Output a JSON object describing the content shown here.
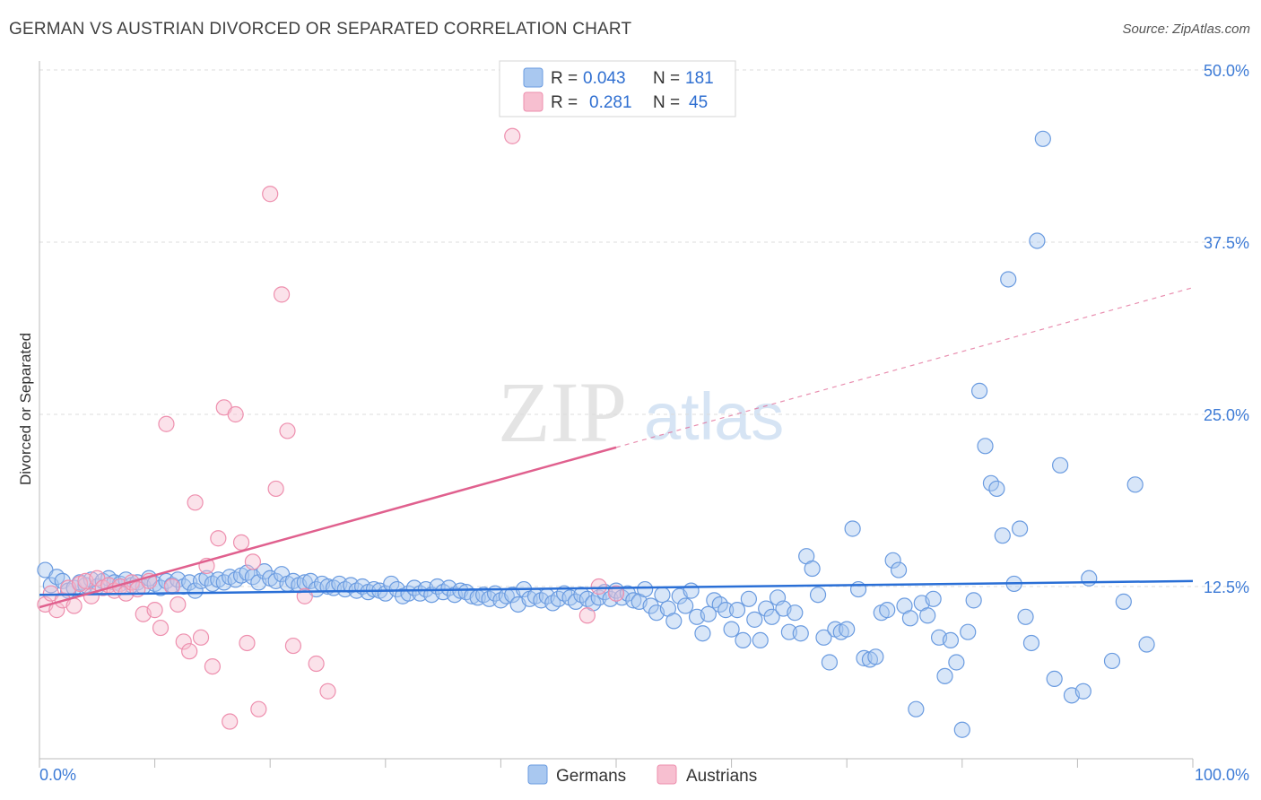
{
  "title": "GERMAN VS AUSTRIAN DIVORCED OR SEPARATED CORRELATION CHART",
  "source": "Source: ZipAtlas.com",
  "watermark": {
    "zip": "ZIP",
    "atlas": "atlas"
  },
  "legend": {
    "rows": [
      {
        "r_label": "R =",
        "r_value": "0.043",
        "n_label": "N =",
        "n_value": "181"
      },
      {
        "r_label": "R =",
        "r_value": "0.281",
        "n_label": "N =",
        "n_value": "45"
      }
    ]
  },
  "bottom_legend": [
    "Germans",
    "Austrians"
  ],
  "colors": {
    "german_fill": "#a9c8f0",
    "german_stroke": "#6a9be0",
    "german_line": "#2a6fd6",
    "austrian_fill": "#f7bfd0",
    "austrian_stroke": "#ee8fae",
    "austrian_line": "#e0608e",
    "tick_label": "#3d7bd6"
  },
  "chart_data": {
    "type": "scatter",
    "title": "GERMAN VS AUSTRIAN DIVORCED OR SEPARATED CORRELATION CHART",
    "xlabel": "",
    "ylabel": "Divorced or Separated",
    "xlim": [
      0,
      100
    ],
    "ylim": [
      0,
      50
    ],
    "x_tick_labels": [
      "0.0%",
      "100.0%"
    ],
    "y_tick_labels": [
      "12.5%",
      "25.0%",
      "37.5%",
      "50.0%"
    ],
    "y_ticks": [
      12.5,
      25.0,
      37.5,
      50.0
    ],
    "grid": true,
    "legend_position": "top-center",
    "series": [
      {
        "name": "Germans",
        "R": 0.043,
        "N": 181,
        "trend": {
          "x": [
            0,
            100
          ],
          "y": [
            11.9,
            12.9
          ]
        },
        "points": [
          [
            0.5,
            13.7
          ],
          [
            1,
            12.6
          ],
          [
            1.5,
            13.2
          ],
          [
            2,
            12.9
          ],
          [
            2.5,
            12.2
          ],
          [
            3,
            12.4
          ],
          [
            3.5,
            12.8
          ],
          [
            4,
            12.6
          ],
          [
            4.5,
            13.0
          ],
          [
            5,
            12.5
          ],
          [
            5.5,
            12.9
          ],
          [
            6,
            13.1
          ],
          [
            6.5,
            12.8
          ],
          [
            7,
            12.7
          ],
          [
            7.5,
            13.0
          ],
          [
            8,
            12.6
          ],
          [
            8.5,
            12.8
          ],
          [
            9,
            12.5
          ],
          [
            9.5,
            13.1
          ],
          [
            10,
            12.7
          ],
          [
            10.5,
            12.4
          ],
          [
            11,
            12.9
          ],
          [
            11.5,
            12.6
          ],
          [
            12,
            13.0
          ],
          [
            12.5,
            12.5
          ],
          [
            13,
            12.8
          ],
          [
            13.5,
            12.2
          ],
          [
            14,
            12.9
          ],
          [
            14.5,
            13.1
          ],
          [
            15,
            12.7
          ],
          [
            15.5,
            13.0
          ],
          [
            16,
            12.8
          ],
          [
            16.5,
            13.2
          ],
          [
            17,
            13.0
          ],
          [
            17.5,
            13.3
          ],
          [
            18,
            13.5
          ],
          [
            18.5,
            13.2
          ],
          [
            19,
            12.8
          ],
          [
            19.5,
            13.6
          ],
          [
            20,
            13.1
          ],
          [
            20.5,
            12.9
          ],
          [
            21,
            13.4
          ],
          [
            21.5,
            12.7
          ],
          [
            22,
            12.9
          ],
          [
            22.5,
            12.6
          ],
          [
            23,
            12.8
          ],
          [
            23.5,
            12.9
          ],
          [
            24,
            12.3
          ],
          [
            24.5,
            12.7
          ],
          [
            25,
            12.5
          ],
          [
            25.5,
            12.4
          ],
          [
            26,
            12.7
          ],
          [
            26.5,
            12.3
          ],
          [
            27,
            12.6
          ],
          [
            27.5,
            12.2
          ],
          [
            28,
            12.5
          ],
          [
            28.5,
            12.1
          ],
          [
            29,
            12.3
          ],
          [
            29.5,
            12.2
          ],
          [
            30,
            12.0
          ],
          [
            30.5,
            12.7
          ],
          [
            31,
            12.3
          ],
          [
            31.5,
            11.8
          ],
          [
            32,
            12.0
          ],
          [
            32.5,
            12.4
          ],
          [
            33,
            12.0
          ],
          [
            33.5,
            12.3
          ],
          [
            34,
            11.9
          ],
          [
            34.5,
            12.5
          ],
          [
            35,
            12.1
          ],
          [
            35.5,
            12.4
          ],
          [
            36,
            11.9
          ],
          [
            36.5,
            12.2
          ],
          [
            37,
            12.1
          ],
          [
            37.5,
            11.8
          ],
          [
            38,
            11.7
          ],
          [
            38.5,
            11.9
          ],
          [
            39,
            11.6
          ],
          [
            39.5,
            12.0
          ],
          [
            40,
            11.5
          ],
          [
            40.5,
            11.8
          ],
          [
            41,
            11.9
          ],
          [
            41.5,
            11.2
          ],
          [
            42,
            12.3
          ],
          [
            42.5,
            11.6
          ],
          [
            43,
            11.8
          ],
          [
            43.5,
            11.5
          ],
          [
            44,
            11.8
          ],
          [
            44.5,
            11.3
          ],
          [
            45,
            11.6
          ],
          [
            45.5,
            12.0
          ],
          [
            46,
            11.7
          ],
          [
            46.5,
            11.4
          ],
          [
            47,
            11.9
          ],
          [
            47.5,
            11.6
          ],
          [
            48,
            11.3
          ],
          [
            48.5,
            11.7
          ],
          [
            49,
            12.1
          ],
          [
            49.5,
            11.6
          ],
          [
            50,
            12.2
          ],
          [
            50.5,
            11.7
          ],
          [
            51,
            12.0
          ],
          [
            51.5,
            11.5
          ],
          [
            52,
            11.4
          ],
          [
            52.5,
            12.3
          ],
          [
            53,
            11.1
          ],
          [
            53.5,
            10.6
          ],
          [
            54,
            11.9
          ],
          [
            54.5,
            10.9
          ],
          [
            55,
            10.0
          ],
          [
            55.5,
            11.8
          ],
          [
            56,
            11.1
          ],
          [
            56.5,
            12.2
          ],
          [
            57,
            10.3
          ],
          [
            57.5,
            9.1
          ],
          [
            58,
            10.5
          ],
          [
            58.5,
            11.5
          ],
          [
            59,
            11.2
          ],
          [
            59.5,
            10.8
          ],
          [
            60,
            9.4
          ],
          [
            60.5,
            10.8
          ],
          [
            61,
            8.6
          ],
          [
            61.5,
            11.6
          ],
          [
            62,
            10.1
          ],
          [
            62.5,
            8.6
          ],
          [
            63,
            10.9
          ],
          [
            63.5,
            10.3
          ],
          [
            64,
            11.7
          ],
          [
            64.5,
            10.9
          ],
          [
            65,
            9.2
          ],
          [
            65.5,
            10.6
          ],
          [
            66,
            9.1
          ],
          [
            66.5,
            14.7
          ],
          [
            67,
            13.8
          ],
          [
            67.5,
            11.9
          ],
          [
            68,
            8.8
          ],
          [
            68.5,
            7.0
          ],
          [
            69,
            9.4
          ],
          [
            69.5,
            9.2
          ],
          [
            70,
            9.4
          ],
          [
            70.5,
            16.7
          ],
          [
            71,
            12.3
          ],
          [
            71.5,
            7.3
          ],
          [
            72,
            7.2
          ],
          [
            72.5,
            7.4
          ],
          [
            73,
            10.6
          ],
          [
            73.5,
            10.8
          ],
          [
            74,
            14.4
          ],
          [
            74.5,
            13.7
          ],
          [
            75,
            11.1
          ],
          [
            75.5,
            10.2
          ],
          [
            76,
            3.6
          ],
          [
            76.5,
            11.3
          ],
          [
            77,
            10.4
          ],
          [
            77.5,
            11.6
          ],
          [
            78,
            8.8
          ],
          [
            78.5,
            6.0
          ],
          [
            79,
            8.6
          ],
          [
            79.5,
            7.0
          ],
          [
            80,
            2.1
          ],
          [
            80.5,
            9.2
          ],
          [
            81,
            11.5
          ],
          [
            81.5,
            26.7
          ],
          [
            82,
            22.7
          ],
          [
            82.5,
            20.0
          ],
          [
            83,
            19.6
          ],
          [
            83.5,
            16.2
          ],
          [
            84,
            34.8
          ],
          [
            84.5,
            12.7
          ],
          [
            85,
            16.7
          ],
          [
            85.5,
            10.3
          ],
          [
            86,
            8.4
          ],
          [
            86.5,
            37.6
          ],
          [
            87,
            45.0
          ],
          [
            88,
            5.8
          ],
          [
            88.5,
            21.3
          ],
          [
            89.5,
            4.6
          ],
          [
            90.5,
            4.9
          ],
          [
            91,
            13.1
          ],
          [
            93,
            7.1
          ],
          [
            94,
            11.4
          ],
          [
            95,
            19.9
          ],
          [
            96,
            8.3
          ]
        ]
      },
      {
        "name": "Austrians",
        "R": 0.281,
        "N": 45,
        "trend": {
          "x": [
            0,
            50,
            100
          ],
          "y": [
            11.0,
            22.6,
            34.2
          ]
        },
        "points": [
          [
            0.5,
            11.2
          ],
          [
            1,
            12.0
          ],
          [
            1.5,
            10.8
          ],
          [
            2,
            11.5
          ],
          [
            2.5,
            12.4
          ],
          [
            3,
            11.1
          ],
          [
            3.5,
            12.7
          ],
          [
            4,
            12.9
          ],
          [
            4.5,
            11.8
          ],
          [
            5,
            13.1
          ],
          [
            5.5,
            12.4
          ],
          [
            6,
            12.6
          ],
          [
            6.5,
            12.2
          ],
          [
            7,
            12.5
          ],
          [
            7.5,
            12.0
          ],
          [
            8,
            12.8
          ],
          [
            8.5,
            12.3
          ],
          [
            9,
            10.5
          ],
          [
            9.5,
            12.9
          ],
          [
            10,
            10.8
          ],
          [
            10.5,
            9.5
          ],
          [
            11,
            24.3
          ],
          [
            11.5,
            12.5
          ],
          [
            12,
            11.2
          ],
          [
            12.5,
            8.5
          ],
          [
            13,
            7.8
          ],
          [
            13.5,
            18.6
          ],
          [
            14,
            8.8
          ],
          [
            14.5,
            14.0
          ],
          [
            15,
            6.7
          ],
          [
            15.5,
            16.0
          ],
          [
            16,
            25.5
          ],
          [
            16.5,
            2.7
          ],
          [
            17,
            25.0
          ],
          [
            17.5,
            15.7
          ],
          [
            18,
            8.4
          ],
          [
            18.5,
            14.3
          ],
          [
            19,
            3.6
          ],
          [
            20,
            41.0
          ],
          [
            20.5,
            19.6
          ],
          [
            21,
            33.7
          ],
          [
            21.5,
            23.8
          ],
          [
            22,
            8.2
          ],
          [
            23,
            11.8
          ],
          [
            24,
            6.9
          ],
          [
            25,
            4.9
          ],
          [
            41,
            45.2
          ],
          [
            47.5,
            10.4
          ],
          [
            48.5,
            12.5
          ],
          [
            50,
            12.0
          ]
        ]
      }
    ]
  }
}
